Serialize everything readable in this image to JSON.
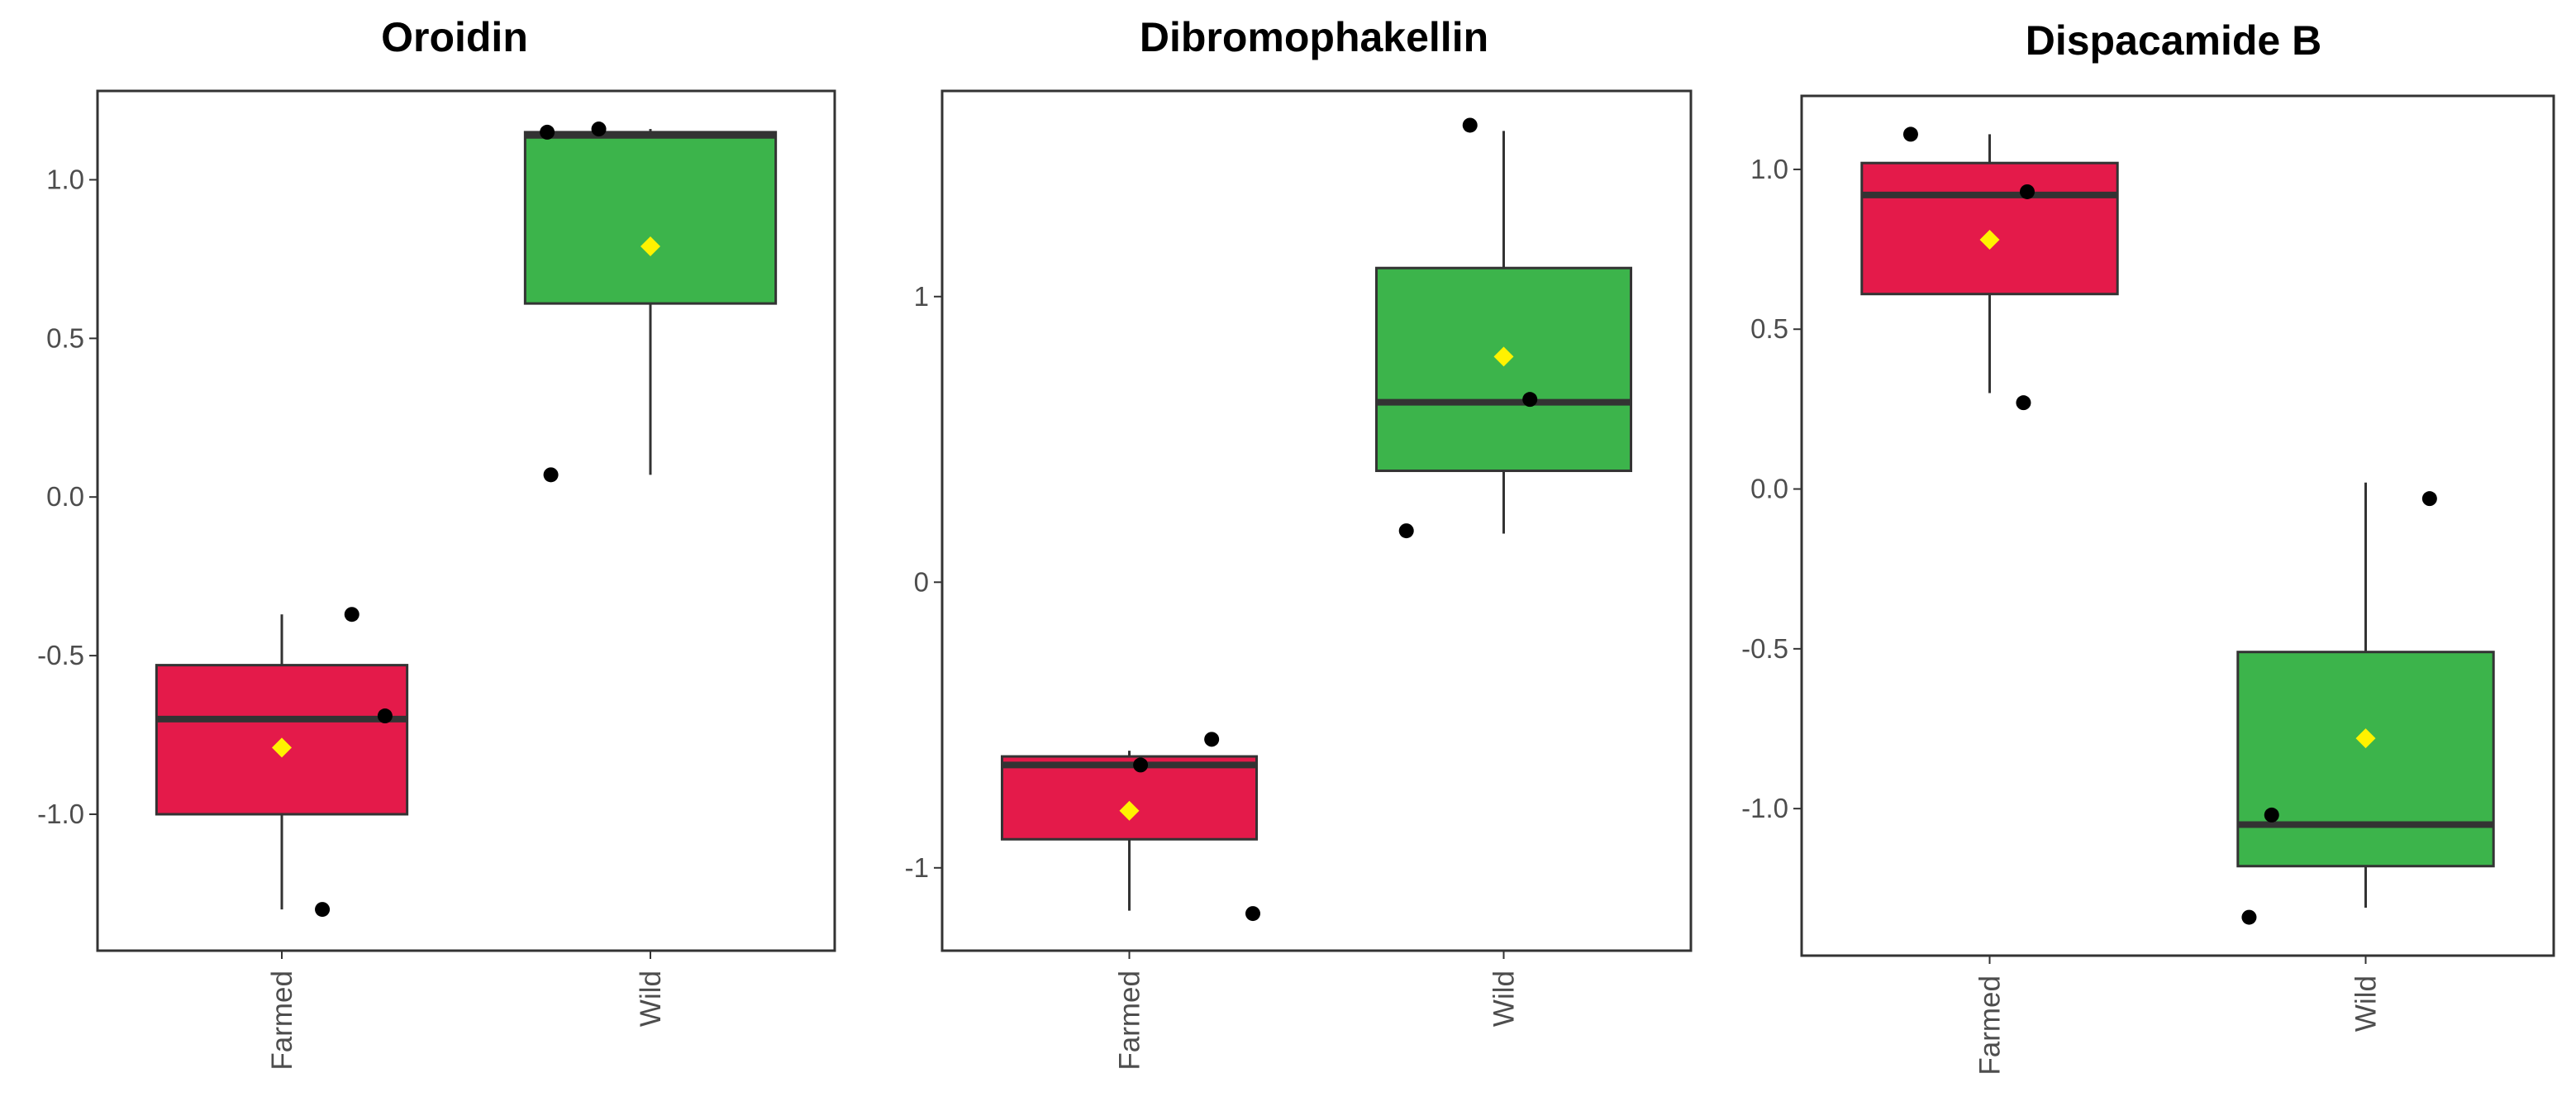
{
  "chart_data": [
    {
      "type": "box",
      "title": "Oroidin",
      "categories": [
        "Farmed",
        "Wild"
      ],
      "ylim": [
        -1.43,
        1.28
      ],
      "yticks": [
        -1.0,
        -0.5,
        0.0,
        0.5,
        1.0
      ],
      "ytick_labels": [
        "-1.0",
        "-0.5",
        "0.0",
        "0.5",
        "1.0"
      ],
      "boxes": [
        {
          "group": "Farmed",
          "fill": "#E41A4A",
          "whisker_low": -1.3,
          "q1": -1.0,
          "median": -0.7,
          "q3": -0.53,
          "whisker_high": -0.37,
          "mean": -0.79
        },
        {
          "group": "Wild",
          "fill": "#3CB44B",
          "whisker_low": 0.07,
          "q1": 0.61,
          "median": 1.14,
          "q3": 1.15,
          "whisker_high": 1.16,
          "mean": 0.79
        }
      ],
      "points": [
        {
          "group": "Farmed",
          "jitter": 0.19,
          "y": -0.37
        },
        {
          "group": "Farmed",
          "jitter": 0.28,
          "y": -0.69
        },
        {
          "group": "Farmed",
          "jitter": 0.11,
          "y": -1.3
        },
        {
          "group": "Wild",
          "jitter": -0.28,
          "y": 1.15
        },
        {
          "group": "Wild",
          "jitter": -0.14,
          "y": 1.16
        },
        {
          "group": "Wild",
          "jitter": -0.27,
          "y": 0.07
        }
      ]
    },
    {
      "type": "box",
      "title": "Dibromophakellin",
      "categories": [
        "Farmed",
        "Wild"
      ],
      "ylim": [
        -1.29,
        1.72
      ],
      "yticks": [
        -1,
        0,
        1
      ],
      "ytick_labels": [
        "-1",
        "0",
        "1"
      ],
      "boxes": [
        {
          "group": "Farmed",
          "fill": "#E41A4A",
          "whisker_low": -1.15,
          "q1": -0.9,
          "median": -0.64,
          "q3": -0.61,
          "whisker_high": -0.59,
          "mean": -0.8
        },
        {
          "group": "Wild",
          "fill": "#3CB44B",
          "whisker_low": 0.17,
          "q1": 0.39,
          "median": 0.63,
          "q3": 1.1,
          "whisker_high": 1.58,
          "mean": 0.79
        }
      ],
      "points": [
        {
          "group": "Farmed",
          "jitter": 0.03,
          "y": -0.64
        },
        {
          "group": "Farmed",
          "jitter": 0.22,
          "y": -0.55
        },
        {
          "group": "Farmed",
          "jitter": 0.33,
          "y": -1.16
        },
        {
          "group": "Wild",
          "jitter": -0.26,
          "y": 0.18
        },
        {
          "group": "Wild",
          "jitter": -0.09,
          "y": 1.6
        },
        {
          "group": "Wild",
          "jitter": 0.07,
          "y": 0.64
        }
      ]
    },
    {
      "type": "box",
      "title": "Dispacamide B",
      "categories": [
        "Farmed",
        "Wild"
      ],
      "ylim": [
        -1.46,
        1.23
      ],
      "yticks": [
        -1.0,
        -0.5,
        0.0,
        0.5,
        1.0
      ],
      "ytick_labels": [
        "-1.0",
        "-0.5",
        "0.0",
        "0.5",
        "1.0"
      ],
      "boxes": [
        {
          "group": "Farmed",
          "fill": "#E41A4A",
          "whisker_low": 0.3,
          "q1": 0.61,
          "median": 0.92,
          "q3": 1.02,
          "whisker_high": 1.11,
          "mean": 0.78
        },
        {
          "group": "Wild",
          "fill": "#3CB44B",
          "whisker_low": -1.31,
          "q1": -1.18,
          "median": -1.05,
          "q3": -0.51,
          "whisker_high": 0.02,
          "mean": -0.78
        }
      ],
      "points": [
        {
          "group": "Farmed",
          "jitter": -0.21,
          "y": 1.11
        },
        {
          "group": "Farmed",
          "jitter": 0.1,
          "y": 0.93
        },
        {
          "group": "Farmed",
          "jitter": 0.09,
          "y": 0.27
        },
        {
          "group": "Wild",
          "jitter": -0.25,
          "y": -1.02
        },
        {
          "group": "Wild",
          "jitter": -0.31,
          "y": -1.34
        },
        {
          "group": "Wild",
          "jitter": 0.17,
          "y": -0.03
        }
      ]
    }
  ],
  "colors": {
    "mean_marker": "#FFF200",
    "box_stroke": "#333333",
    "point": "#000000",
    "panel_border": "#333333"
  }
}
